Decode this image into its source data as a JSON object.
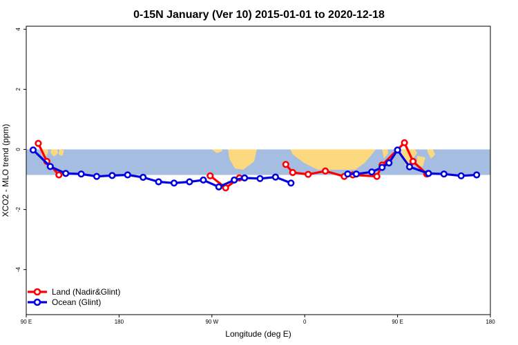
{
  "chart_data": {
    "type": "line",
    "title": "0-15N January (Ver 10)   2015-01-01 to 2020-12-18",
    "xlabel": "Longitude (deg E)",
    "ylabel": "XCO2 - MLO trend (ppm)",
    "xlim": [
      -90,
      180
    ],
    "ylim": [
      -5.5,
      4.1
    ],
    "x_axis_note": "longitude wraps: 90 E -> 180 -> 90 W -> 0 -> 90 E -> 180",
    "x_ticks": [
      {
        "x": -90,
        "label": "90 E"
      },
      {
        "x": -36,
        "label": "180"
      },
      {
        "x": 18,
        "label": "90 W"
      },
      {
        "x": 72,
        "label": "0"
      },
      {
        "x": 126,
        "label": "90 E"
      },
      {
        "x": 180,
        "label": "180"
      }
    ],
    "y_ticks": [
      {
        "y": 4,
        "label": "4"
      },
      {
        "y": 2,
        "label": "2"
      },
      {
        "y": 0,
        "label": "0"
      },
      {
        "y": -2,
        "label": "-2"
      },
      {
        "y": -4,
        "label": "-4"
      }
    ],
    "background_band": {
      "ymin": -0.85,
      "ymax": 0.0,
      "ocean_color": "#a5bde0",
      "land_color": "#fcd97e"
    },
    "legend": {
      "position": "bottom-left",
      "entries": [
        {
          "label": "Land (Nadir&Glint)",
          "color": "#ff0000"
        },
        {
          "label": "Ocean (Glint)",
          "color": "#0000e0"
        }
      ]
    },
    "series": [
      {
        "name": "Land (Nadir&Glint)",
        "color": "#ff0000",
        "segments": [
          [
            [
              -83,
              0.2
            ],
            [
              -78,
              -0.4
            ],
            [
              -71,
              -0.85
            ]
          ],
          [
            [
              17,
              -0.88
            ],
            [
              26,
              -1.28
            ],
            [
              34,
              -0.95
            ]
          ],
          [
            [
              61,
              -0.5
            ],
            [
              65,
              -0.77
            ],
            [
              74,
              -0.83
            ],
            [
              84,
              -0.72
            ],
            [
              95,
              -0.9
            ],
            [
              100,
              -0.85
            ],
            [
              114,
              -0.9
            ],
            [
              117,
              -0.52
            ],
            [
              130,
              0.22
            ],
            [
              135,
              -0.4
            ],
            [
              143,
              -0.82
            ]
          ]
        ]
      },
      {
        "name": "Ocean (Glint)",
        "color": "#0000e0",
        "segments": [
          [
            [
              -86,
              -0.02
            ],
            [
              -76,
              -0.57
            ],
            [
              -67,
              -0.8
            ],
            [
              -58,
              -0.82
            ],
            [
              -49,
              -0.9
            ],
            [
              -40,
              -0.87
            ],
            [
              -31,
              -0.85
            ],
            [
              -22,
              -0.93
            ],
            [
              -13,
              -1.08
            ],
            [
              -4,
              -1.12
            ],
            [
              5,
              -1.08
            ],
            [
              13,
              -1.02
            ],
            [
              22,
              -1.25
            ],
            [
              31,
              -1.02
            ],
            [
              37,
              -0.95
            ],
            [
              46,
              -0.97
            ],
            [
              55,
              -0.92
            ],
            [
              64,
              -1.12
            ]
          ],
          [
            [
              97,
              -0.82
            ],
            [
              102,
              -0.82
            ],
            [
              111,
              -0.75
            ],
            [
              117,
              -0.6
            ],
            [
              121,
              -0.45
            ],
            [
              126,
              -0.02
            ],
            [
              133,
              -0.58
            ],
            [
              144,
              -0.8
            ],
            [
              153,
              -0.82
            ],
            [
              163,
              -0.88
            ],
            [
              172,
              -0.85
            ]
          ]
        ]
      }
    ]
  }
}
